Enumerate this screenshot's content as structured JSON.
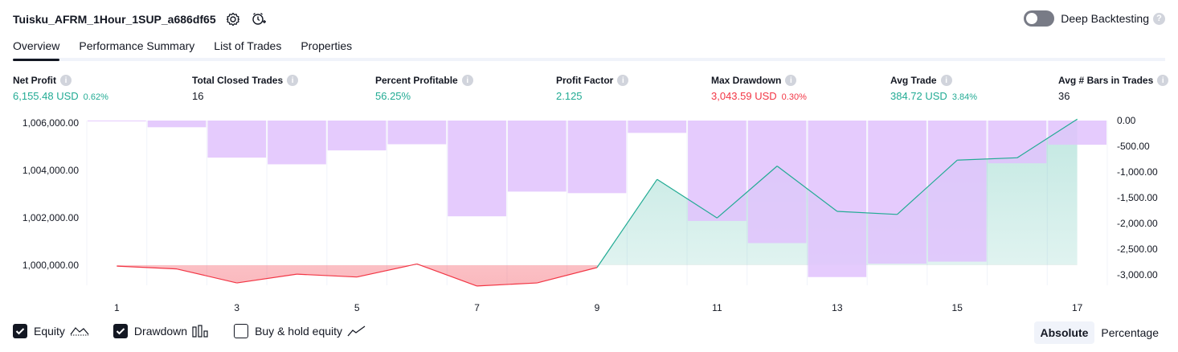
{
  "header": {
    "strategy_name": "Tuisku_AFRM_1Hour_1SUP_a686df65",
    "settings_icon": "gear-icon",
    "alert_icon": "add-alert-icon",
    "deep_backtesting_label": "Deep Backtesting",
    "deep_backtesting_enabled": false
  },
  "tabs": [
    {
      "label": "Overview",
      "active": true
    },
    {
      "label": "Performance Summary",
      "active": false
    },
    {
      "label": "List of Trades",
      "active": false
    },
    {
      "label": "Properties",
      "active": false
    }
  ],
  "metrics": [
    {
      "label": "Net Profit",
      "value": "6,155.48 USD",
      "pct": "0.62%",
      "color": "#22ab94"
    },
    {
      "label": "Total Closed Trades",
      "value": "16",
      "pct": "",
      "color": "#131722"
    },
    {
      "label": "Percent Profitable",
      "value": "56.25%",
      "pct": "",
      "color": "#22ab94"
    },
    {
      "label": "Profit Factor",
      "value": "2.125",
      "pct": "",
      "color": "#22ab94"
    },
    {
      "label": "Max Drawdown",
      "value": "3,043.59 USD",
      "pct": "0.30%",
      "color": "#f23645"
    },
    {
      "label": "Avg Trade",
      "value": "384.72 USD",
      "pct": "3.84%",
      "color": "#22ab94"
    },
    {
      "label": "Avg # Bars in Trades",
      "value": "36",
      "pct": "",
      "color": "#131722"
    }
  ],
  "chart_data": {
    "type": "line",
    "x_ticks": [
      "1",
      "3",
      "5",
      "7",
      "9",
      "11",
      "13",
      "15",
      "17"
    ],
    "left_axis": {
      "ticks": [
        "1,006,000.00",
        "1,004,000.00",
        "1,002,000.00",
        "1,000,000.00"
      ],
      "tick_values": [
        1006000,
        1004000,
        1002000,
        1000000
      ],
      "range": [
        999150,
        1006100
      ]
    },
    "right_axis": {
      "ticks": [
        "0.00",
        "-500.00",
        "-1,000.00",
        "-1,500.00",
        "-2,000.00",
        "-2,500.00",
        "-3,000.00"
      ],
      "tick_values": [
        0,
        -500,
        -1000,
        -1500,
        -2000,
        -2500,
        -3000
      ],
      "range": [
        -3200,
        0
      ]
    },
    "initial_capital": 1000000,
    "series": [
      {
        "name": "Equity",
        "type": "line",
        "x": [
          1,
          2,
          3,
          4,
          5,
          6,
          7,
          8,
          9,
          10,
          11,
          12,
          13,
          14,
          15,
          16,
          17
        ],
        "values": [
          999960,
          999840,
          999250,
          999620,
          999500,
          1000050,
          999120,
          999250,
          999900,
          1003620,
          1001990,
          1004180,
          1002270,
          1002140,
          1004430,
          1004530,
          1006160
        ]
      },
      {
        "name": "Drawdown",
        "type": "bar",
        "x": [
          1,
          2,
          3,
          4,
          5,
          6,
          7,
          8,
          9,
          10,
          11,
          12,
          13,
          14,
          15,
          16,
          17
        ],
        "values": [
          -10,
          -130,
          -720,
          -850,
          -580,
          -460,
          -1860,
          -1380,
          -1410,
          -240,
          -1950,
          -2380,
          -3040,
          -2780,
          -2740,
          -830,
          -470
        ]
      }
    ],
    "colors": {
      "profit_line": "#22ab94",
      "loss_line": "#f23645",
      "drawdown_bar": "#e1c2fd",
      "profit_fill": "#d4efe8",
      "loss_fill": "#f7c5c9"
    }
  },
  "legend": [
    {
      "label": "Equity",
      "checked": true,
      "icon": "equity-line-icon"
    },
    {
      "label": "Drawdown",
      "checked": true,
      "icon": "drawdown-bars-icon"
    },
    {
      "label": "Buy & hold equity",
      "checked": false,
      "icon": "buy-hold-line-icon"
    }
  ],
  "scale_toggle": {
    "options": [
      "Absolute",
      "Percentage"
    ],
    "selected": "Absolute"
  }
}
